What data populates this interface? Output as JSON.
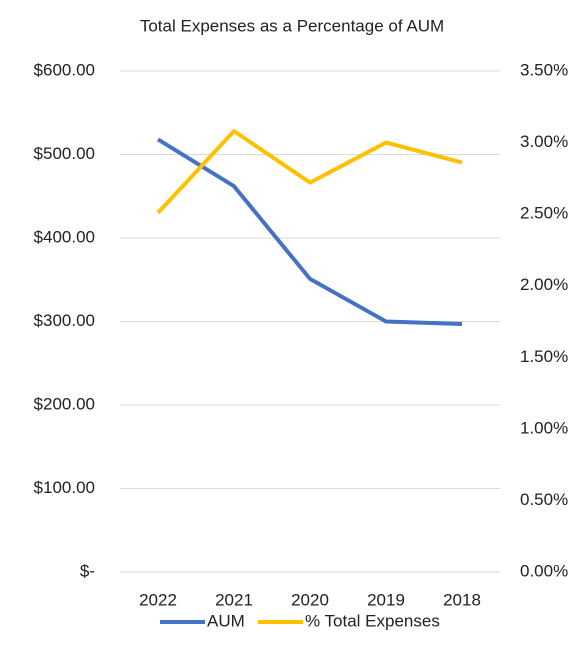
{
  "chart_data": {
    "type": "line",
    "title": "Total Expenses as a Percentage of AUM",
    "categories": [
      "2022",
      "2021",
      "2020",
      "2019",
      "2018"
    ],
    "series": [
      {
        "name": "AUM",
        "color": "#4472c4",
        "values": [
          518,
          462,
          351,
          300,
          297
        ]
      },
      {
        "name": "% Total Expenses",
        "color": "#ffc000",
        "axis": "y2",
        "values": [
          2.51,
          3.08,
          2.72,
          3.0,
          2.86
        ]
      }
    ],
    "ylim": [
      0,
      600
    ],
    "yticks": [
      {
        "value": 0,
        "label": "$-"
      },
      {
        "value": 100,
        "label": "$100.00"
      },
      {
        "value": 200,
        "label": "$200.00"
      },
      {
        "value": 300,
        "label": "$300.00"
      },
      {
        "value": 400,
        "label": "$400.00"
      },
      {
        "value": 500,
        "label": "$500.00"
      },
      {
        "value": 600,
        "label": "$600.00"
      }
    ],
    "y2lim": [
      0,
      3.5
    ],
    "y2ticks": [
      {
        "value": 0,
        "label": "0.00%"
      },
      {
        "value": 0.5,
        "label": "0.50%"
      },
      {
        "value": 1,
        "label": "1.00%"
      },
      {
        "value": 1.5,
        "label": "1.50%"
      },
      {
        "value": 2,
        "label": "2.00%"
      },
      {
        "value": 2.5,
        "label": "2.50%"
      },
      {
        "value": 3,
        "label": "3.00%"
      },
      {
        "value": 3.5,
        "label": "3.50%"
      }
    ],
    "grid": true,
    "legend": "bottom"
  }
}
